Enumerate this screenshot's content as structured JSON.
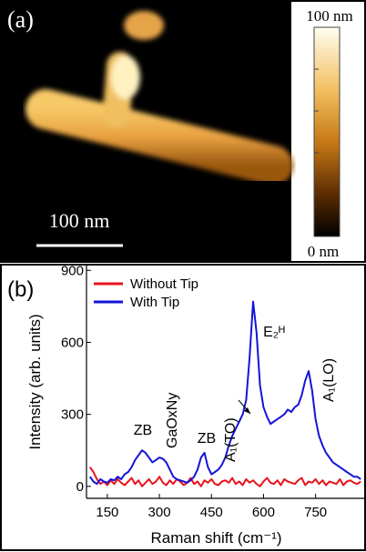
{
  "panel_a": {
    "label": "(a)",
    "scale_bar": "100 nm",
    "colorbar_max": "100 nm",
    "colorbar_min": "0 nm"
  },
  "chart_data": {
    "type": "line",
    "label": "(b)",
    "x_label": "Raman shift (cm⁻¹)",
    "y_label": "Intensity (arb. units)",
    "x": [
      100,
      110,
      120,
      130,
      140,
      150,
      160,
      170,
      180,
      190,
      200,
      210,
      220,
      230,
      240,
      250,
      260,
      270,
      280,
      290,
      300,
      310,
      320,
      330,
      340,
      350,
      360,
      370,
      380,
      390,
      400,
      410,
      420,
      430,
      440,
      450,
      460,
      470,
      480,
      490,
      500,
      510,
      520,
      530,
      540,
      550,
      560,
      570,
      580,
      590,
      600,
      610,
      620,
      630,
      640,
      650,
      660,
      670,
      680,
      690,
      700,
      710,
      720,
      730,
      740,
      750,
      760,
      770,
      780,
      790,
      800,
      810,
      820,
      830,
      840,
      850,
      860,
      870,
      880
    ],
    "series": [
      {
        "name": "Without Tip",
        "color": "#e8141c",
        "values": [
          80,
          60,
          30,
          10,
          20,
          5,
          25,
          10,
          30,
          15,
          5,
          20,
          35,
          10,
          25,
          0,
          15,
          30,
          10,
          20,
          40,
          15,
          5,
          25,
          10,
          30,
          20,
          5,
          15,
          35,
          10,
          20,
          0,
          25,
          15,
          30,
          10,
          5,
          20,
          25,
          15,
          35,
          10,
          20,
          5,
          30,
          15,
          25,
          10,
          0,
          20,
          35,
          15,
          10,
          25,
          5,
          30,
          20,
          15,
          10,
          25,
          35,
          5,
          20,
          15,
          30,
          10,
          25,
          5,
          20,
          15,
          10,
          30,
          5,
          20,
          25,
          15,
          10,
          20
        ]
      },
      {
        "name": "With Tip",
        "color": "#1414d8",
        "values": [
          40,
          20,
          10,
          30,
          20,
          15,
          30,
          25,
          40,
          30,
          50,
          60,
          80,
          110,
          130,
          150,
          140,
          120,
          100,
          110,
          120,
          115,
          100,
          70,
          40,
          30,
          25,
          20,
          15,
          25,
          40,
          70,
          120,
          140,
          80,
          50,
          60,
          70,
          90,
          120,
          170,
          210,
          240,
          270,
          300,
          360,
          540,
          770,
          640,
          420,
          330,
          290,
          260,
          270,
          280,
          290,
          300,
          320,
          310,
          330,
          340,
          380,
          440,
          480,
          400,
          280,
          210,
          170,
          140,
          120,
          100,
          90,
          80,
          70,
          60,
          50,
          40,
          40,
          30
        ]
      }
    ],
    "annotations": [
      "ZB",
      "GaOxNy",
      "ZB",
      "A₁(TO)",
      "E₂ᴴ",
      "A₁(LO)"
    ],
    "xlim": [
      90,
      890
    ],
    "ylim": [
      -50,
      920
    ],
    "xticks": [
      150,
      300,
      450,
      600,
      750
    ],
    "yticks": [
      0,
      300,
      600,
      900
    ],
    "legend": "upper left"
  }
}
